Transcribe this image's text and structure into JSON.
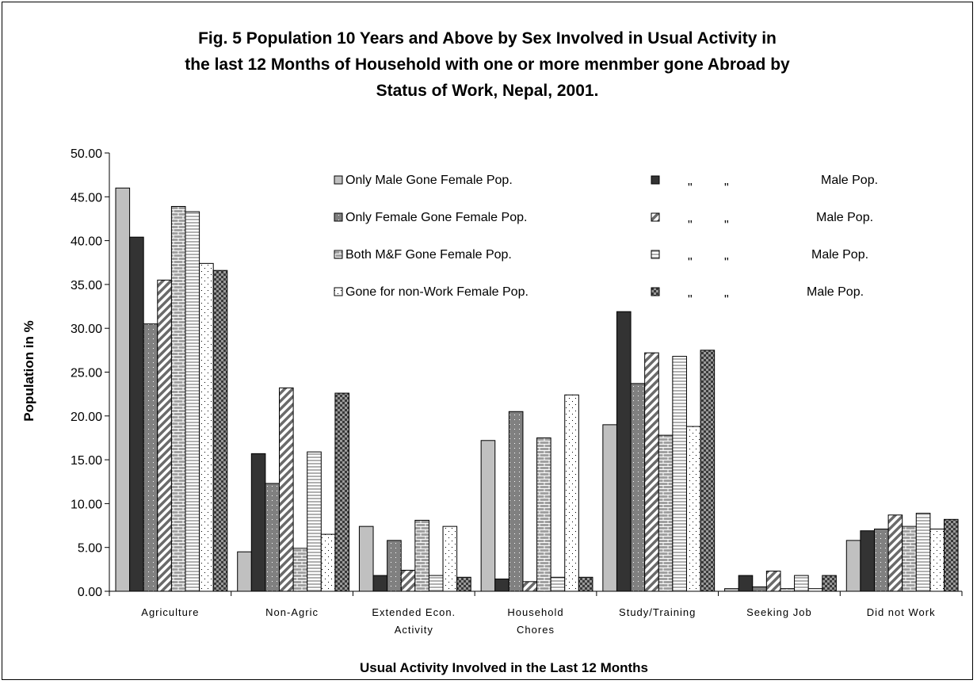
{
  "chart_data": {
    "type": "bar",
    "title_lines": [
      "Fig. 5  Population 10 Years and Above by Sex Involved in Usual Activity in",
      "the last 12 Months of Household with one or more menmber gone Abroad by",
      "Status of Work, Nepal, 2001."
    ],
    "xlabel": "Usual Activity Involved in the Last 12 Months",
    "ylabel": "Population in %",
    "ylim": [
      0,
      50
    ],
    "yticks": [
      "0.00",
      "5.00",
      "10.00",
      "15.00",
      "20.00",
      "25.00",
      "30.00",
      "35.00",
      "40.00",
      "45.00",
      "50.00"
    ],
    "grid": false,
    "legend_position": "top-right",
    "categories": [
      [
        "Agriculture"
      ],
      [
        "Non-Agric"
      ],
      [
        "Extended Econ.",
        "Activity"
      ],
      [
        "Household",
        "Chores"
      ],
      [
        "Study/Training"
      ],
      [
        "Seeking Job"
      ],
      [
        "Did not Work"
      ]
    ],
    "series": [
      {
        "name": "Only Male Gone Female Pop.",
        "fill": "#c0c0c0",
        "values": [
          46.0,
          4.5,
          7.4,
          17.2,
          19.0,
          0.3,
          5.8
        ]
      },
      {
        "name": "Male Pop.",
        "fill": "#333333",
        "values": [
          40.4,
          15.7,
          1.8,
          1.4,
          31.9,
          1.8,
          6.9
        ]
      },
      {
        "name": "Only Female Gone Female Pop.",
        "fill": "#808080",
        "values": [
          30.5,
          12.3,
          5.8,
          20.5,
          23.7,
          0.5,
          7.1
        ]
      },
      {
        "name": "Male Pop.",
        "fill": "#a8a8a8",
        "values": [
          35.5,
          23.2,
          2.4,
          1.1,
          27.2,
          2.3,
          8.7
        ]
      },
      {
        "name": "Both M&F Gone Female Pop.",
        "fill": "#a0a0a0",
        "values": [
          43.9,
          4.9,
          8.1,
          17.5,
          17.8,
          0.3,
          7.4
        ]
      },
      {
        "name": "Male Pop.",
        "fill": "#c8c8c8",
        "values": [
          43.3,
          15.9,
          1.8,
          1.6,
          26.8,
          1.8,
          8.9
        ]
      },
      {
        "name": "Gone for non-Work Female Pop.",
        "fill": "#ffffff",
        "values": [
          37.4,
          6.5,
          7.4,
          22.4,
          18.8,
          0.3,
          7.1
        ]
      },
      {
        "name": "Male Pop.",
        "fill": "#606060",
        "values": [
          36.6,
          22.6,
          1.6,
          1.6,
          27.5,
          1.8,
          8.2
        ]
      }
    ],
    "legend_ditto": "\""
  }
}
